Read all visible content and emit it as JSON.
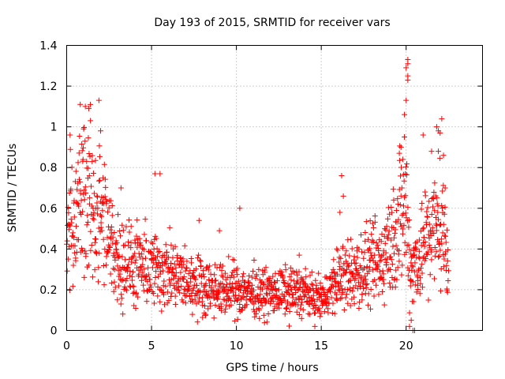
{
  "chart_data": {
    "type": "scatter",
    "title": "Day 193 of 2015, SRMTID for receiver vars",
    "xlabel": "GPS time / hours",
    "ylabel": "SRMTID / TECUs",
    "xlim": [
      0,
      24.5
    ],
    "ylim": [
      0,
      1.4
    ],
    "xticks": [
      0,
      5,
      10,
      15,
      20
    ],
    "yticks": [
      0,
      0.2,
      0.4,
      0.6,
      0.8,
      1,
      1.2,
      1.4
    ],
    "ytick_labels": [
      "0",
      "0.2",
      "0.4",
      "0.6",
      "0.8",
      "1",
      "1.2",
      "1.4"
    ],
    "grid": true,
    "marker": "+",
    "color": "#ff0000",
    "series": [
      {
        "name": "SRMTID",
        "trend": {
          "x": [
            0,
            0.5,
            1,
            1.5,
            2,
            2.5,
            3,
            4,
            5,
            5.5,
            6,
            7,
            8,
            9,
            10,
            11,
            12,
            13,
            14,
            14.5,
            15,
            15.5,
            16,
            17,
            18,
            18.5,
            19,
            19.5,
            20,
            20.3,
            20.5,
            21,
            21.5,
            22,
            22.5
          ],
          "y": [
            0.52,
            0.58,
            0.66,
            0.62,
            0.56,
            0.44,
            0.36,
            0.31,
            0.3,
            0.3,
            0.28,
            0.24,
            0.22,
            0.2,
            0.2,
            0.19,
            0.18,
            0.19,
            0.19,
            0.16,
            0.15,
            0.2,
            0.25,
            0.28,
            0.31,
            0.34,
            0.42,
            0.52,
            0.6,
            0.3,
            0.32,
            0.42,
            0.48,
            0.52,
            0.4
          ]
        },
        "outliers": [
          {
            "x": 0.8,
            "y": 1.11
          },
          {
            "x": 1.1,
            "y": 1.1
          },
          {
            "x": 1.3,
            "y": 1.09
          },
          {
            "x": 1.9,
            "y": 1.13
          },
          {
            "x": 1.4,
            "y": 1.03
          },
          {
            "x": 1.0,
            "y": 0.99
          },
          {
            "x": 2.0,
            "y": 0.98
          },
          {
            "x": 0.2,
            "y": 0.96
          },
          {
            "x": 5.2,
            "y": 0.77
          },
          {
            "x": 5.5,
            "y": 0.77
          },
          {
            "x": 3.2,
            "y": 0.7
          },
          {
            "x": 16.2,
            "y": 0.76
          },
          {
            "x": 16.3,
            "y": 0.66
          },
          {
            "x": 10.2,
            "y": 0.6
          },
          {
            "x": 16.1,
            "y": 0.58
          },
          {
            "x": 7.8,
            "y": 0.54
          },
          {
            "x": 9.0,
            "y": 0.49
          },
          {
            "x": 13.7,
            "y": 0.37
          },
          {
            "x": 19.8,
            "y": 0.84
          },
          {
            "x": 19.7,
            "y": 0.9
          },
          {
            "x": 19.6,
            "y": 0.87
          },
          {
            "x": 19.9,
            "y": 0.95
          },
          {
            "x": 19.9,
            "y": 1.06
          },
          {
            "x": 20.0,
            "y": 1.13
          },
          {
            "x": 20.1,
            "y": 1.23
          },
          {
            "x": 20.1,
            "y": 1.25
          },
          {
            "x": 20.1,
            "y": 1.31
          },
          {
            "x": 20.1,
            "y": 1.33
          },
          {
            "x": 20.0,
            "y": 1.29
          },
          {
            "x": 22.1,
            "y": 1.04
          },
          {
            "x": 21.8,
            "y": 1.0
          },
          {
            "x": 21.9,
            "y": 0.98
          },
          {
            "x": 22.0,
            "y": 0.97
          },
          {
            "x": 21.0,
            "y": 0.96
          },
          {
            "x": 21.5,
            "y": 0.88
          },
          {
            "x": 21.9,
            "y": 0.88
          },
          {
            "x": 22.2,
            "y": 0.86
          },
          {
            "x": 22.3,
            "y": 0.7
          },
          {
            "x": 20.4,
            "y": 0.0
          },
          {
            "x": 20.5,
            "y": 0.0
          },
          {
            "x": 20.2,
            "y": 0.02
          },
          {
            "x": 20.3,
            "y": 0.05
          }
        ]
      }
    ]
  }
}
